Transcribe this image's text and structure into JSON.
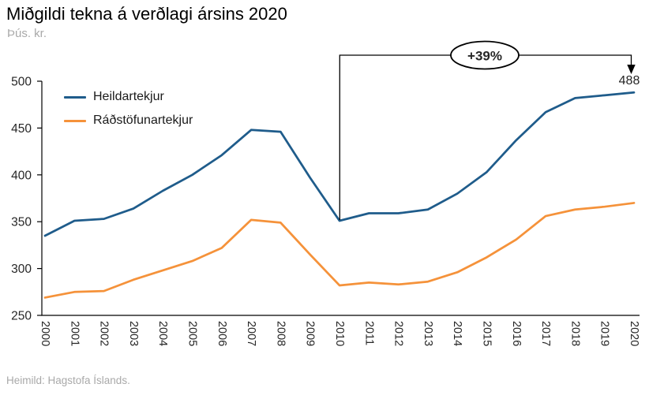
{
  "header": {
    "title": "Miðgildi tekna á verðlagi ársins 2020",
    "subtitle": "Þús. kr."
  },
  "legend": {
    "items": [
      {
        "label": "Heildartekjur",
        "color": "#1F5C8B"
      },
      {
        "label": "Ráðstöfunartekjur",
        "color": "#F5923A"
      }
    ]
  },
  "annotation": {
    "badge": "+39%",
    "end_value_label": "488",
    "span_years": [
      "2010",
      "2020"
    ]
  },
  "footer": {
    "source": "Heimild: Hagstofa Íslands."
  },
  "colors": {
    "heildartekjur": "#1F5C8B",
    "radstofunartekjur": "#F5923A",
    "axis": "#000000",
    "muted_text": "#a9a9a9"
  },
  "chart_data": {
    "type": "line",
    "title": "Miðgildi tekna á verðlagi ársins 2020",
    "ylabel": "Þús. kr.",
    "xlabel": "",
    "ylim": [
      250,
      500
    ],
    "yticks": [
      250,
      300,
      350,
      400,
      450,
      500
    ],
    "grid": false,
    "legend_position": "top-left-inside",
    "x": [
      "2000",
      "2001",
      "2002",
      "2003",
      "2004",
      "2005",
      "2006",
      "2007",
      "2008",
      "2009",
      "2010",
      "2011",
      "2012",
      "2013",
      "2014",
      "2015",
      "2016",
      "2017",
      "2018",
      "2019",
      "2020"
    ],
    "series": [
      {
        "name": "Heildartekjur",
        "color": "#1F5C8B",
        "values": [
          335,
          351,
          353,
          364,
          383,
          400,
          421,
          448,
          446,
          397,
          351,
          359,
          359,
          363,
          380,
          403,
          437,
          467,
          482,
          485,
          488
        ]
      },
      {
        "name": "Ráðstöfunartekjur",
        "color": "#F5923A",
        "values": [
          269,
          275,
          276,
          288,
          298,
          308,
          322,
          352,
          349,
          315,
          282,
          285,
          283,
          286,
          296,
          312,
          331,
          356,
          363,
          366,
          370
        ]
      }
    ]
  }
}
